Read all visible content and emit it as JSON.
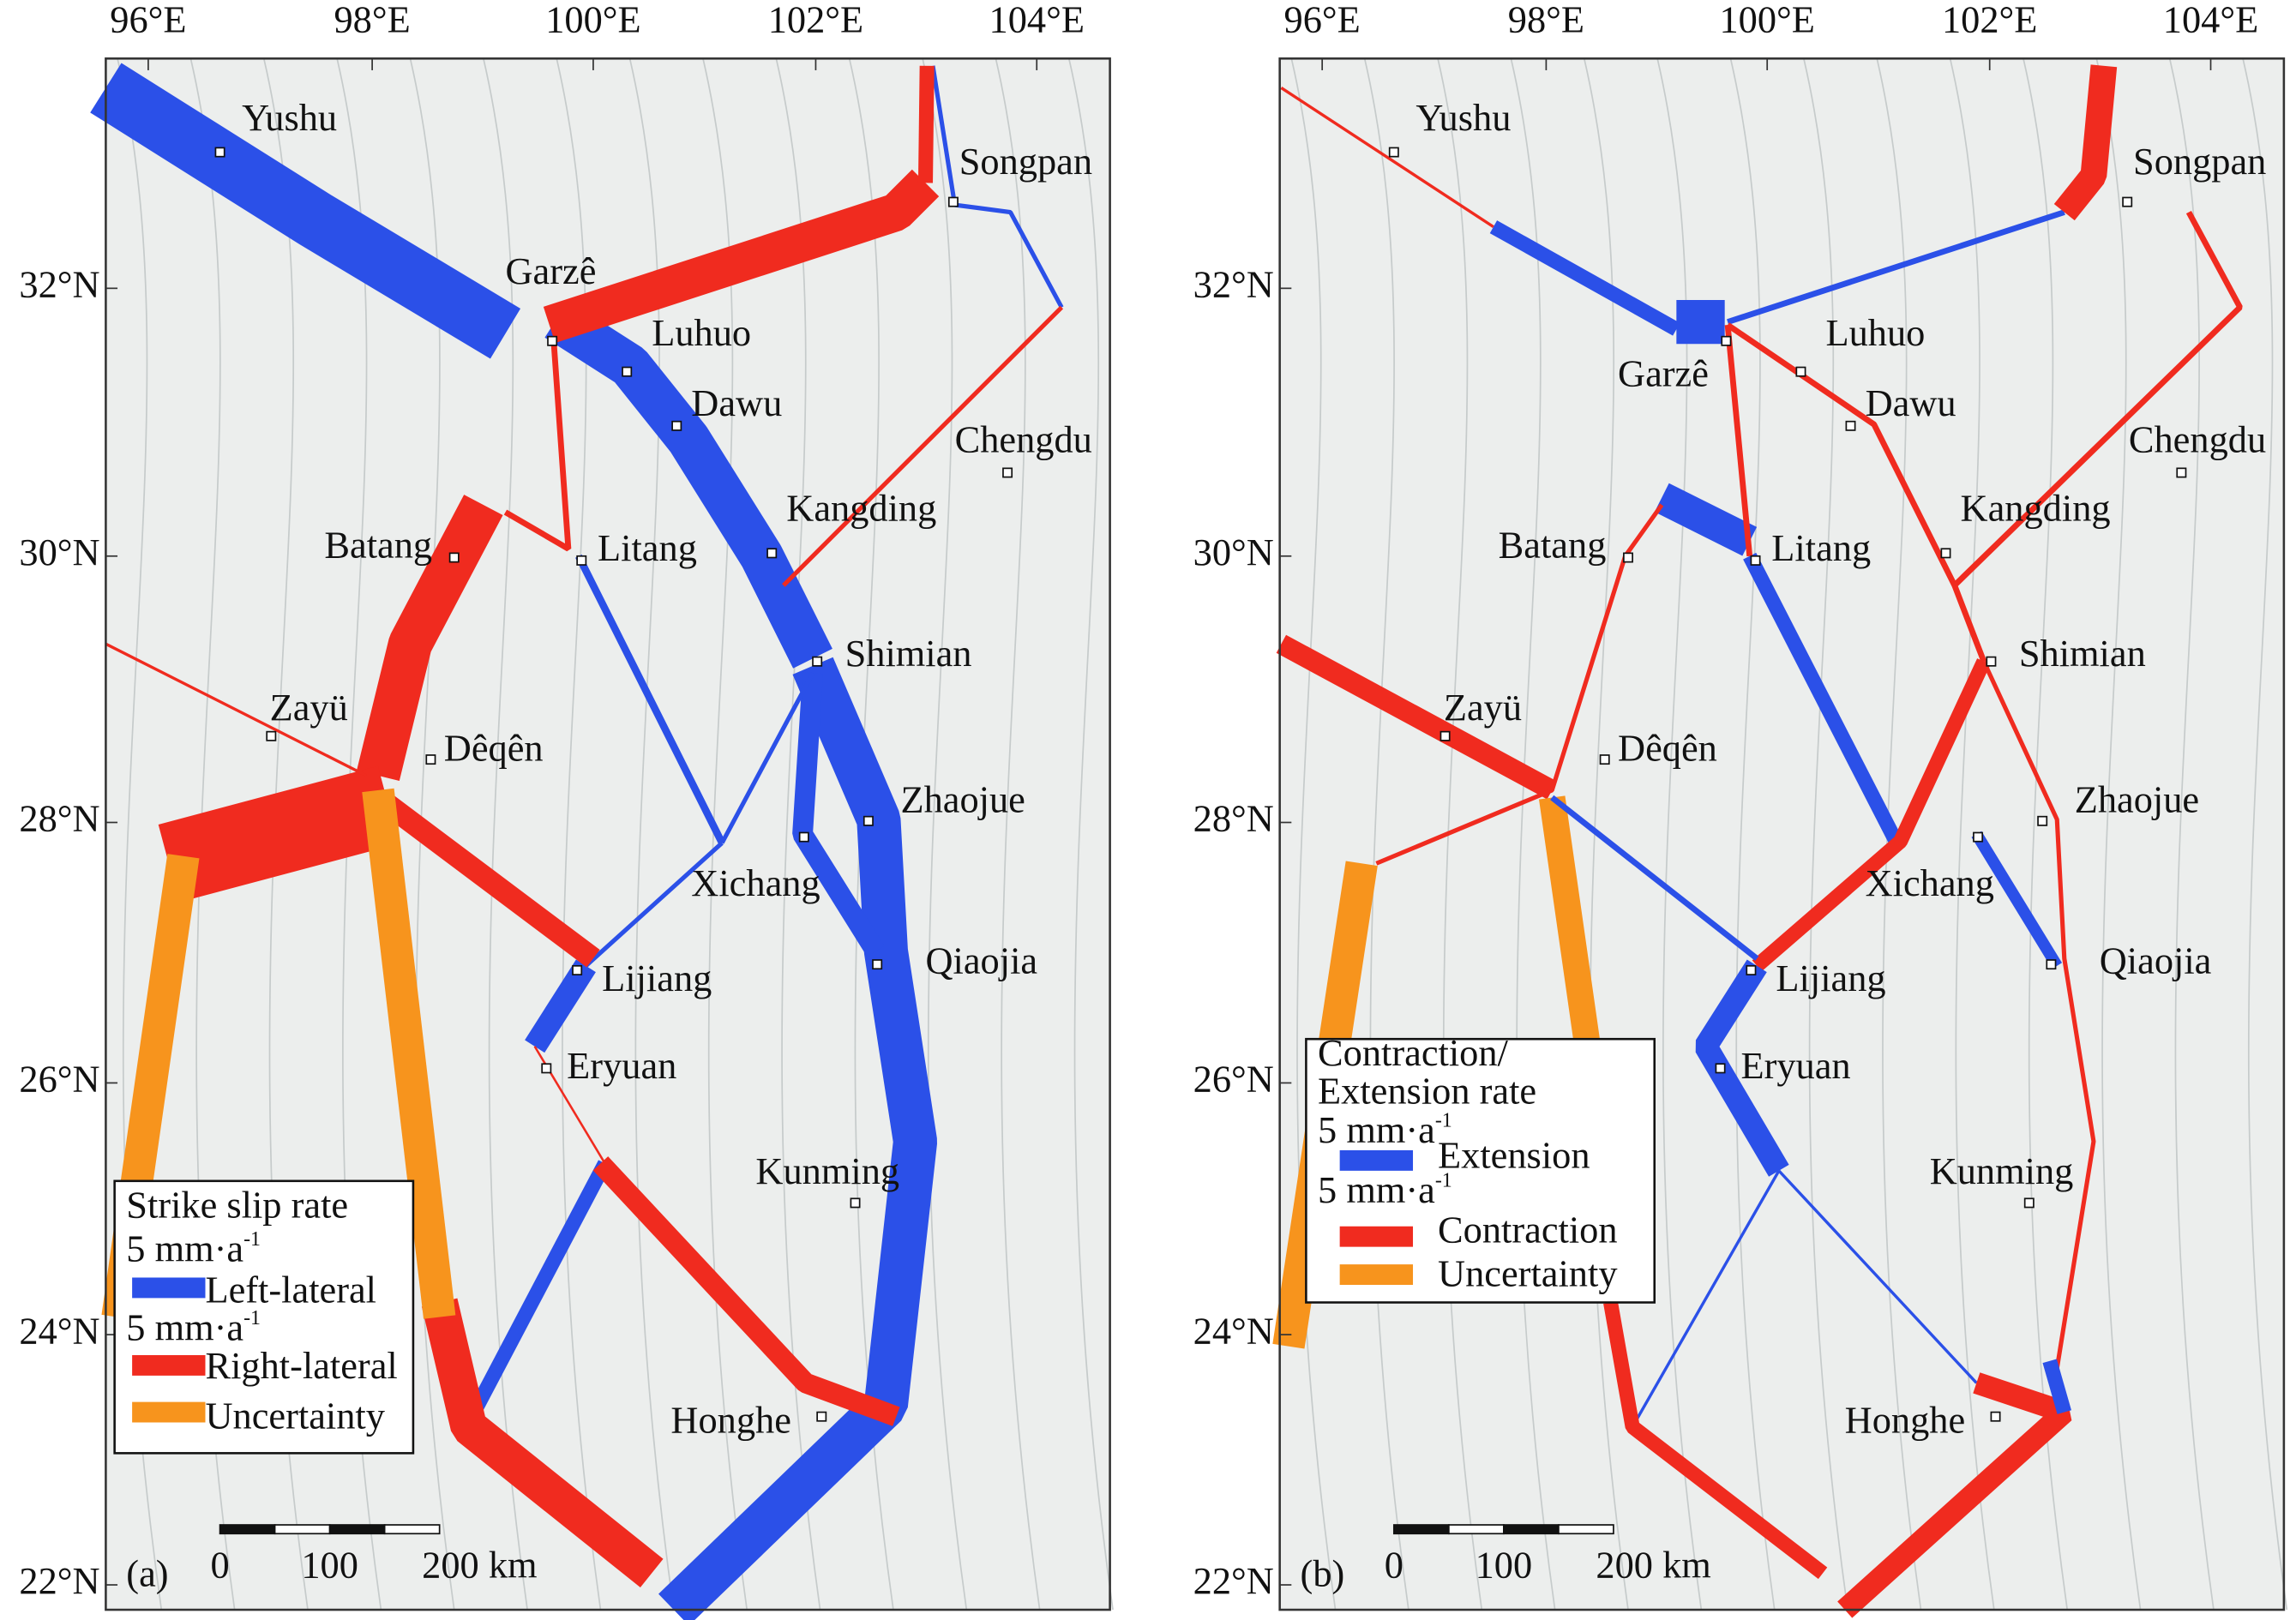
{
  "panels": [
    {
      "label": "(a)",
      "xticks": [
        "96°E",
        "98°E",
        "100°E",
        "102°E",
        "104°E"
      ],
      "yticks": [
        "32°N",
        "30°N",
        "28°N",
        "26°N",
        "24°N",
        "22°N"
      ],
      "cities": [
        "Yushu",
        "Garzê",
        "Luhuo",
        "Dawu",
        "Songpan",
        "Chengdu",
        "Kangding",
        "Batang",
        "Litang",
        "Shimian",
        "Zayü",
        "Dêqên",
        "Zhaojue",
        "Xichang",
        "Lijiang",
        "Qiaojia",
        "Eryuan",
        "Kunming",
        "Honghe"
      ],
      "legend": {
        "title": [
          "Strike slip rate"
        ],
        "items": [
          {
            "scale": "5 mm·a",
            "scale_exp": "-1",
            "name": "Left-lateral"
          },
          {
            "scale": "5 mm·a",
            "scale_exp": "-1",
            "name": "Right-lateral"
          },
          {
            "name": "Uncertainty"
          }
        ]
      },
      "scale_bar": [
        "0",
        "100",
        "200 km"
      ]
    },
    {
      "label": "(b)",
      "xticks": [
        "96°E",
        "98°E",
        "100°E",
        "102°E",
        "104°E"
      ],
      "yticks": [
        "32°N",
        "30°N",
        "28°N",
        "26°N",
        "24°N",
        "22°N"
      ],
      "cities": [
        "Yushu",
        "Garzê",
        "Luhuo",
        "Dawu",
        "Songpan",
        "Chengdu",
        "Kangding",
        "Batang",
        "Litang",
        "Shimian",
        "Zayü",
        "Dêqên",
        "Zhaojue",
        "Xichang",
        "Lijiang",
        "Qiaojia",
        "Eryuan",
        "Kunming",
        "Honghe"
      ],
      "legend": {
        "title": [
          "Contraction/",
          "Extension rate"
        ],
        "items": [
          {
            "scale": "5 mm·a",
            "scale_exp": "-1",
            "name": "Extension"
          },
          {
            "scale": "5 mm·a",
            "scale_exp": "-1",
            "name": "Contraction"
          },
          {
            "name": "Uncertainty"
          }
        ]
      },
      "scale_bar": [
        "0",
        "100",
        "200 km"
      ]
    }
  ]
}
